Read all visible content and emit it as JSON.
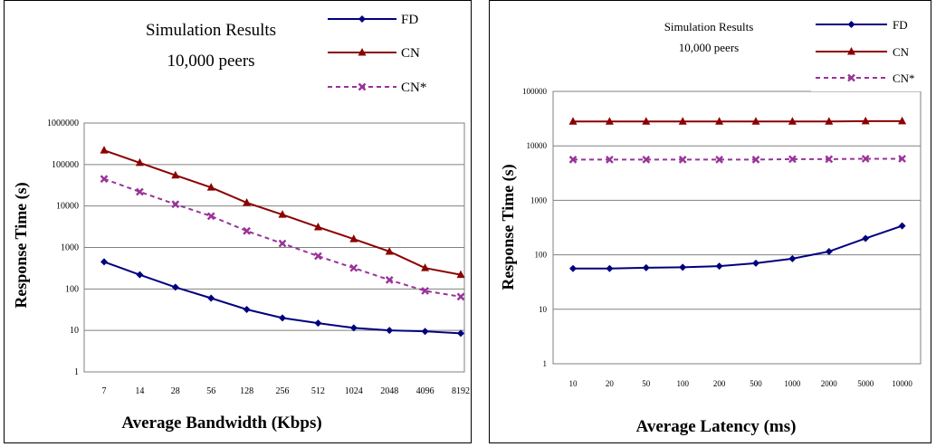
{
  "chart_data": [
    {
      "type": "line",
      "title": "Simulation Results",
      "subtitle": "10,000 peers",
      "xlabel": "Average Bandwidth (Kbps)",
      "ylabel": "Response Time (s)",
      "y_scale": "log",
      "ylim": [
        1,
        1000000
      ],
      "y_ticks": [
        "1",
        "10",
        "100",
        "1000",
        "10000",
        "100000",
        "1000000"
      ],
      "grid": "horizontal",
      "legend_position": "top-right",
      "categories": [
        "7",
        "14",
        "28",
        "56",
        "128",
        "256",
        "512",
        "1024",
        "2048",
        "4096",
        "8192"
      ],
      "series": [
        {
          "name": "FD",
          "color": "#00007f",
          "marker": "diamond",
          "dashed": false,
          "values": [
            450,
            220,
            110,
            60,
            32,
            20,
            15,
            11.5,
            10,
            9.5,
            8.5
          ]
        },
        {
          "name": "CN",
          "color": "#8b0000",
          "marker": "triangle",
          "dashed": false,
          "values": [
            220000,
            110000,
            55000,
            28000,
            12000,
            6200,
            3100,
            1600,
            800,
            320,
            220
          ]
        },
        {
          "name": "CN*",
          "color": "#993399",
          "marker": "x",
          "dashed": true,
          "values": [
            45000,
            22000,
            11000,
            5700,
            2500,
            1250,
            620,
            320,
            165,
            90,
            65
          ]
        }
      ]
    },
    {
      "type": "line",
      "title": "Simulation Results",
      "subtitle": "10,000 peers",
      "xlabel": "Average Latency (ms)",
      "ylabel": "Response Time (s)",
      "y_scale": "log",
      "ylim": [
        1,
        100000
      ],
      "y_ticks": [
        "1",
        "10",
        "100",
        "1000",
        "10000",
        "100000"
      ],
      "grid": "horizontal",
      "legend_position": "top-right",
      "categories": [
        "10",
        "20",
        "50",
        "100",
        "200",
        "500",
        "1000",
        "2000",
        "5000",
        "10000"
      ],
      "series": [
        {
          "name": "FD",
          "color": "#00007f",
          "marker": "diamond",
          "dashed": false,
          "values": [
            56,
            56,
            58,
            59,
            62,
            70,
            85,
            115,
            200,
            340
          ]
        },
        {
          "name": "CN",
          "color": "#8b0000",
          "marker": "triangle",
          "dashed": false,
          "values": [
            28000,
            28000,
            28000,
            28000,
            28000,
            28000,
            28000,
            28000,
            28500,
            28500
          ]
        },
        {
          "name": "CN*",
          "color": "#993399",
          "marker": "x",
          "dashed": true,
          "values": [
            5600,
            5600,
            5600,
            5600,
            5600,
            5600,
            5700,
            5700,
            5800,
            5800
          ]
        }
      ]
    }
  ]
}
